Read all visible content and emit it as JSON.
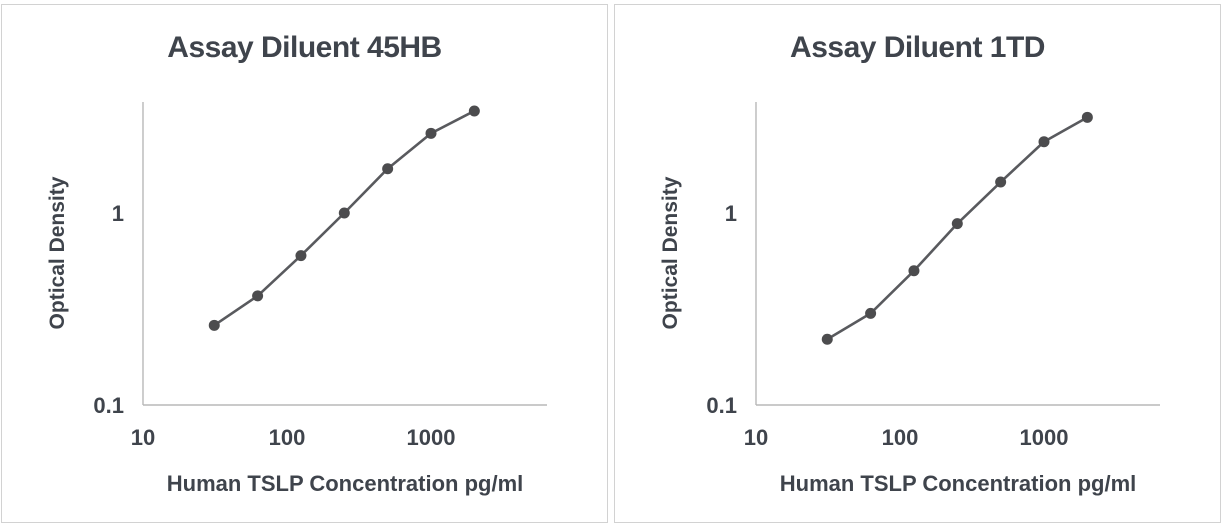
{
  "colors": {
    "text": "#3f444c",
    "series_line": "#595a5e",
    "marker": "#4c4c4e",
    "axis_line": "#b8b8b8",
    "panel_border": "#d2d2d2",
    "background": "#ffffff"
  },
  "chart_data": [
    {
      "type": "line",
      "title": "Assay Diluent 45HB",
      "xlabel": "Human TSLP Concentration pg/ml",
      "ylabel": "Optical Density",
      "x_scale": "log",
      "y_scale": "log",
      "x": [
        31.25,
        62.5,
        125,
        250,
        500,
        1000,
        2000
      ],
      "y": [
        0.26,
        0.37,
        0.6,
        1.0,
        1.7,
        2.6,
        3.4
      ],
      "x_ticks": [
        "10",
        "100",
        "1000"
      ],
      "y_ticks": [
        "0.1",
        "1"
      ],
      "xlim": [
        10,
        6500
      ],
      "ylim": [
        0.1,
        3.75
      ],
      "grid": false,
      "legend": null,
      "marker": "circle"
    },
    {
      "type": "line",
      "title": "Assay Diluent 1TD",
      "xlabel": "Human TSLP Concentration pg/ml",
      "ylabel": "Optical Density",
      "x_scale": "log",
      "y_scale": "log",
      "x": [
        31.25,
        62.5,
        125,
        250,
        500,
        1000,
        2000
      ],
      "y": [
        0.22,
        0.3,
        0.5,
        0.88,
        1.45,
        2.35,
        3.15
      ],
      "x_ticks": [
        "10",
        "100",
        "1000"
      ],
      "y_ticks": [
        "0.1",
        "1"
      ],
      "xlim": [
        10,
        6500
      ],
      "ylim": [
        0.1,
        3.75
      ],
      "grid": false,
      "legend": null,
      "marker": "circle"
    }
  ]
}
